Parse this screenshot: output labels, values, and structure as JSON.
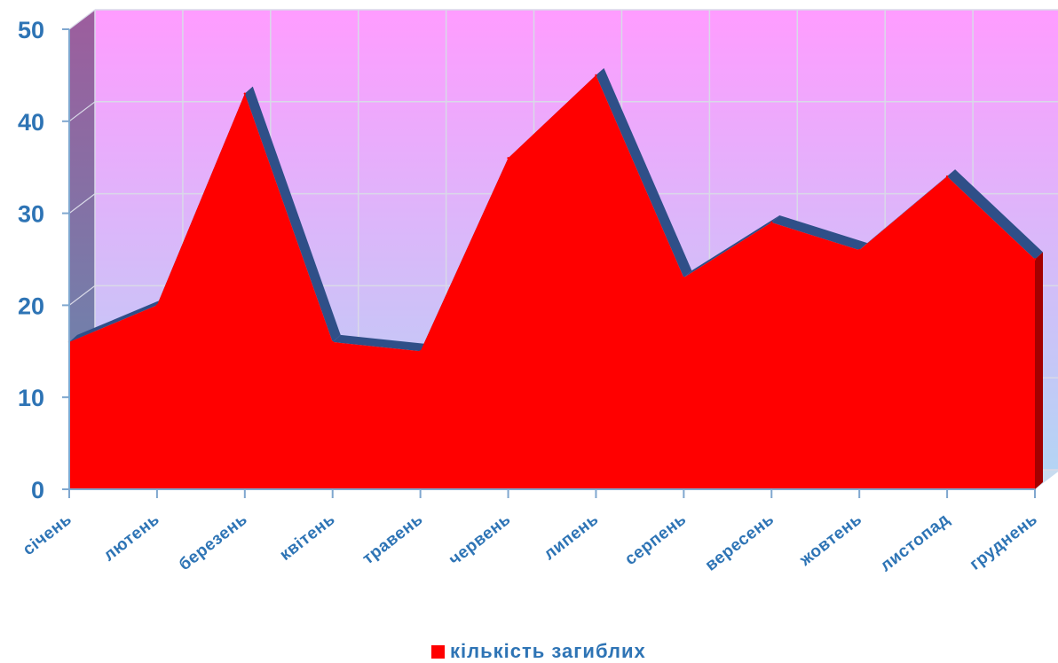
{
  "chart_data": {
    "type": "area",
    "categories": [
      "січень",
      "лютень",
      "березень",
      "квітень",
      "травень",
      "червень",
      "липень",
      "серпень",
      "вересень",
      "жовтень",
      "листопад",
      "груднень"
    ],
    "series": [
      {
        "name": "кількість загиблих",
        "values": [
          16,
          20,
          43,
          16,
          15,
          36,
          45,
          23,
          29,
          26,
          34,
          25
        ]
      }
    ],
    "ylim": [
      0,
      50
    ],
    "yticks": [
      0,
      10,
      20,
      30,
      40,
      50
    ],
    "grid": true,
    "legend_position": "bottom",
    "colors": {
      "area": "#ff0000",
      "area_edge": "#2f4f88",
      "axis_text": "#2e74b5",
      "background_top": "#ff9cff",
      "background_bottom": "#b4d4f4"
    }
  }
}
